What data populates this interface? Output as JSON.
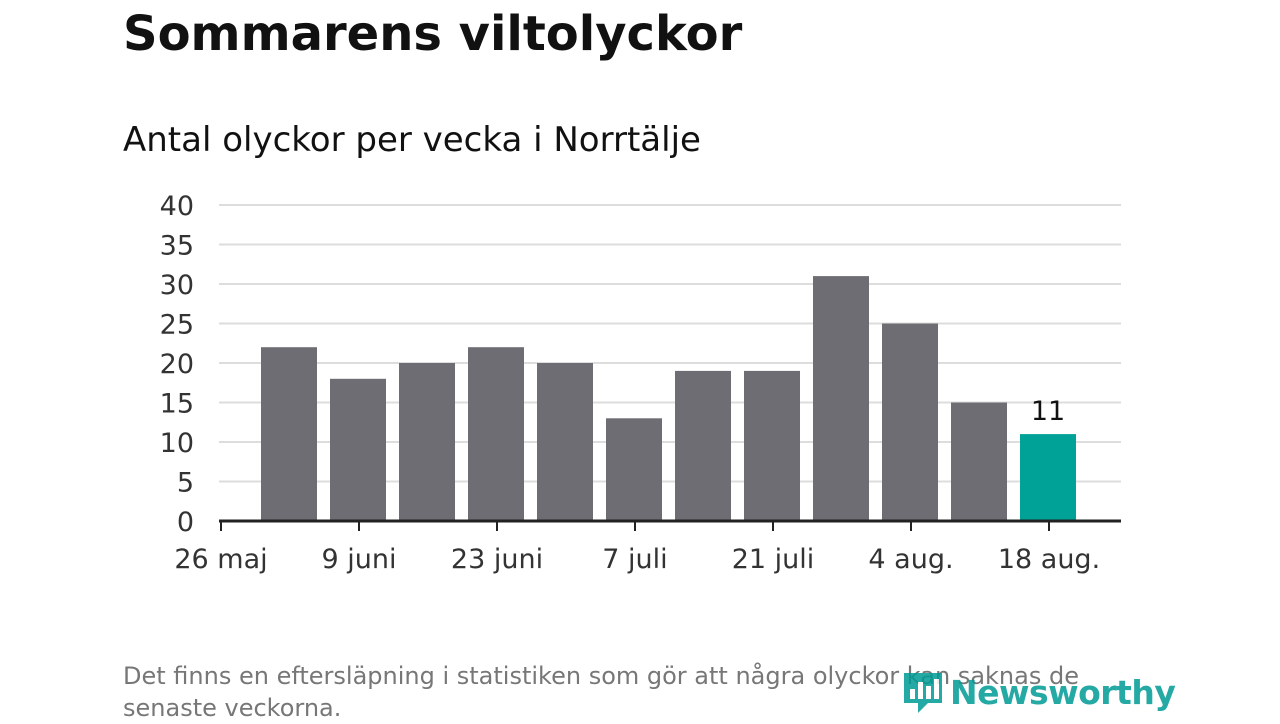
{
  "header": {
    "title": "Sommarens viltolyckor",
    "subtitle": "Antal olyckor per vecka i Norrtälje"
  },
  "footer": {
    "note": "Det finns en eftersläpning i statistiken som gör att några olyckor kan saknas de senaste veckorna.",
    "brand": "Newsworthy"
  },
  "icons": {
    "brand_logo": "newsworthy-logo-icon"
  },
  "colors": {
    "bar": "#6e6d73",
    "highlight": "#00a196",
    "grid": "#dddddd",
    "axis": "#222222",
    "brand": "#009b95"
  },
  "chart_data": {
    "type": "bar",
    "title": "Antal olyckor per vecka i Norrtälje",
    "xlabel": "",
    "ylabel": "",
    "ylim": [
      0,
      40
    ],
    "y_ticks": [
      0,
      5,
      10,
      15,
      20,
      25,
      30,
      35,
      40
    ],
    "x_tick_labels": [
      "26 maj",
      "9 juni",
      "23 juni",
      "7 juli",
      "21 juli",
      "4 aug.",
      "18 aug."
    ],
    "series": [
      {
        "values": [
          22,
          18,
          20,
          22,
          20,
          13,
          19,
          19,
          31,
          25,
          15,
          11
        ]
      }
    ],
    "highlight_index": 11,
    "data_labels": [
      {
        "index": 11,
        "text": "11"
      }
    ],
    "grid": true,
    "legend": "none"
  }
}
